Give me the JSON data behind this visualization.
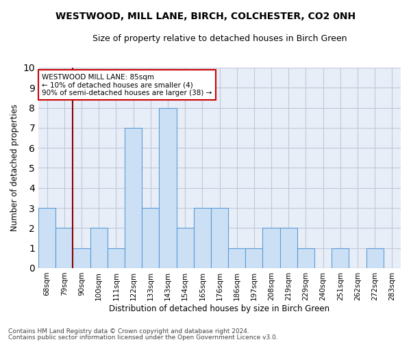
{
  "title": "WESTWOOD, MILL LANE, BIRCH, COLCHESTER, CO2 0NH",
  "subtitle": "Size of property relative to detached houses in Birch Green",
  "xlabel": "Distribution of detached houses by size in Birch Green",
  "ylabel": "Number of detached properties",
  "categories": [
    "68sqm",
    "79sqm",
    "90sqm",
    "100sqm",
    "111sqm",
    "122sqm",
    "133sqm",
    "143sqm",
    "154sqm",
    "165sqm",
    "176sqm",
    "186sqm",
    "197sqm",
    "208sqm",
    "219sqm",
    "229sqm",
    "240sqm",
    "251sqm",
    "262sqm",
    "272sqm",
    "283sqm"
  ],
  "values": [
    3,
    2,
    1,
    2,
    1,
    7,
    3,
    8,
    2,
    3,
    3,
    1,
    1,
    2,
    2,
    1,
    0,
    1,
    0,
    1,
    0
  ],
  "bar_color": "#cce0f5",
  "bar_edge_color": "#5b9bd5",
  "red_line_x": 1.5,
  "red_line_color": "#8b0000",
  "annotation_box_text": "WESTWOOD MILL LANE: 85sqm\n← 10% of detached houses are smaller (4)\n90% of semi-detached houses are larger (38) →",
  "annotation_box_color": "#cc0000",
  "ylim": [
    0,
    10
  ],
  "yticks": [
    0,
    1,
    2,
    3,
    4,
    5,
    6,
    7,
    8,
    9,
    10
  ],
  "grid_color": "#c0c8d8",
  "bg_color": "#e8eef8",
  "footnote1": "Contains HM Land Registry data © Crown copyright and database right 2024.",
  "footnote2": "Contains public sector information licensed under the Open Government Licence v3.0."
}
